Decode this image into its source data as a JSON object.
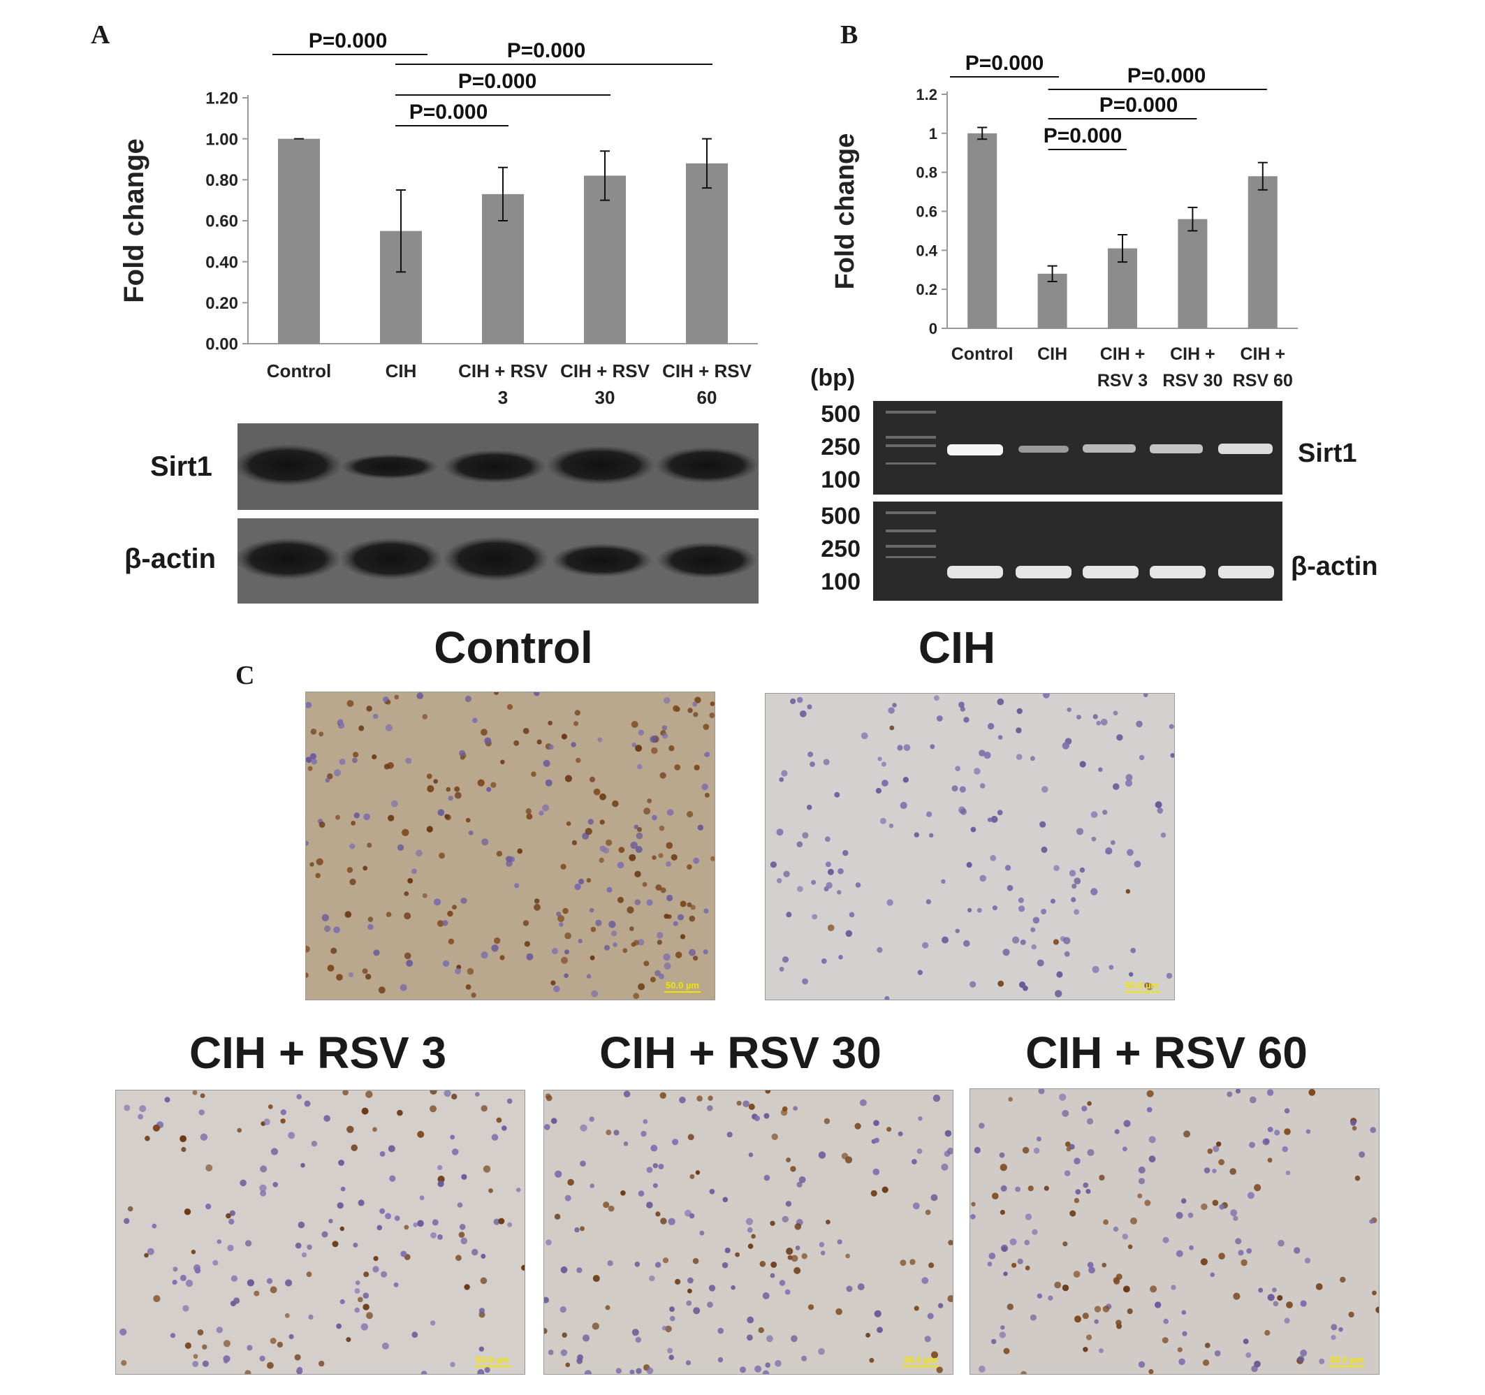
{
  "panels": {
    "a": {
      "letter": "A",
      "blot_labels": [
        "Sirt1",
        "β-actin"
      ]
    },
    "b": {
      "letter": "B",
      "bp_header": "(bp)",
      "ladder_ticks": [
        "500",
        "250",
        "100"
      ],
      "gel_labels": [
        "Sirt1",
        "β-actin"
      ]
    },
    "c": {
      "letter": "C",
      "images": [
        {
          "title": "Control",
          "scale_bar": "50.0 µm"
        },
        {
          "title": "CIH",
          "scale_bar": "50.0 µm"
        },
        {
          "title": "CIH + RSV 3",
          "scale_bar": "50.0 µm"
        },
        {
          "title": "CIH + RSV 30",
          "scale_bar": "50.0 µm"
        },
        {
          "title": "CIH + RSV 60",
          "scale_bar": "50.0 µm"
        }
      ]
    }
  },
  "chart_data": [
    {
      "type": "bar",
      "panel": "A",
      "categories": [
        [
          "Control"
        ],
        [
          "CIH"
        ],
        [
          "CIH + RSV",
          "3"
        ],
        [
          "CIH + RSV",
          "30"
        ],
        [
          "CIH + RSV",
          "60"
        ]
      ],
      "values": [
        1.0,
        0.55,
        0.73,
        0.82,
        0.88
      ],
      "errors": [
        0.0,
        0.2,
        0.13,
        0.12,
        0.12
      ],
      "ylabel": "Fold change",
      "ylim": [
        0,
        1.2
      ],
      "yticks": [
        "0.00",
        "0.20",
        "0.40",
        "0.60",
        "0.80",
        "1.00",
        "1.20"
      ],
      "bar_color": "#8c8c8c",
      "significance": [
        {
          "from": 0,
          "to": 1,
          "label": "P=0.000"
        },
        {
          "from": 1,
          "to": 4,
          "label": "P=0.000"
        },
        {
          "from": 1,
          "to": 3,
          "label": "P=0.000"
        },
        {
          "from": 1,
          "to": 2,
          "label": "P=0.000"
        }
      ]
    },
    {
      "type": "bar",
      "panel": "B",
      "categories": [
        [
          "Control"
        ],
        [
          "CIH"
        ],
        [
          "CIH +",
          "RSV 3"
        ],
        [
          "CIH +",
          "RSV 30"
        ],
        [
          "CIH +",
          "RSV 60"
        ]
      ],
      "values": [
        1.0,
        0.28,
        0.41,
        0.56,
        0.78
      ],
      "errors": [
        0.03,
        0.04,
        0.07,
        0.06,
        0.07
      ],
      "ylabel": "Fold change",
      "ylim": [
        0,
        1.2
      ],
      "yticks": [
        "0",
        "0.2",
        "0.4",
        "0.6",
        "0.8",
        "1",
        "1.2"
      ],
      "bar_color": "#8c8c8c",
      "significance": [
        {
          "from": 0,
          "to": 1,
          "label": "P=0.000"
        },
        {
          "from": 1,
          "to": 4,
          "label": "P=0.000"
        },
        {
          "from": 1,
          "to": 3,
          "label": "P=0.000"
        },
        {
          "from": 1,
          "to": 2,
          "label": "P=0.000"
        }
      ]
    }
  ]
}
